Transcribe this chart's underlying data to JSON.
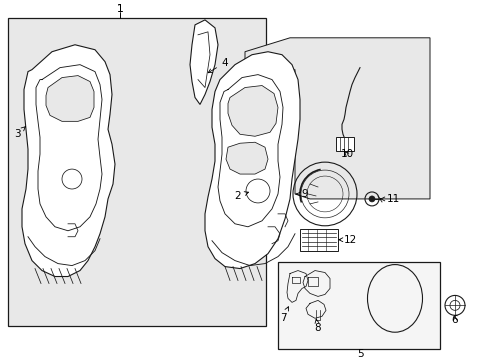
{
  "background_color": "#ffffff",
  "fig_width": 4.89,
  "fig_height": 3.6,
  "dpi": 100,
  "line_color": "#1a1a1a",
  "fill_color": "#e8e8e8",
  "label_fontsize": 7.5
}
